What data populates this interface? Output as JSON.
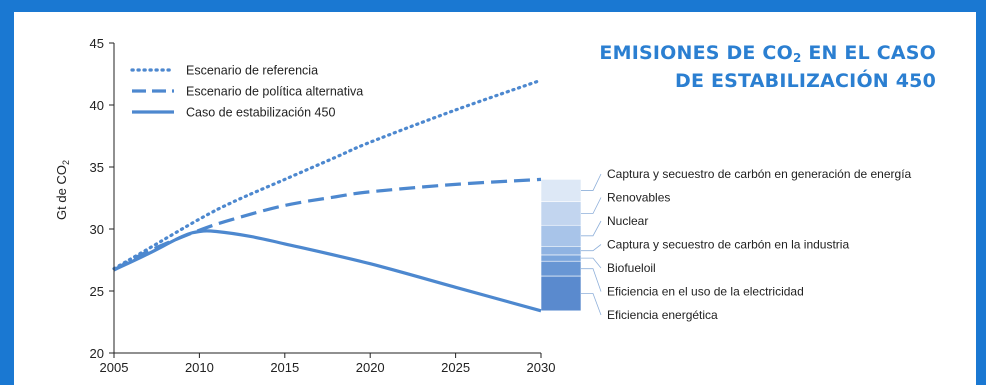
{
  "title": {
    "line1_pre": "EMISIONES DE CO",
    "line1_sub": "2",
    "line1_post": " EN EL CASO",
    "line2": "DE ESTABILIZACIÓN 450"
  },
  "chart_data": {
    "type": "line",
    "title": "EMISIONES DE CO2 EN EL CASO DE ESTABILIZACIÓN 450",
    "ylabel": "Gt de CO2",
    "ylabel_parts": {
      "main": "Gt de CO",
      "sub": "2"
    },
    "xlabel": "",
    "xlim": [
      2005,
      2030
    ],
    "ylim": [
      20,
      45
    ],
    "xticks": [
      "2005",
      "2010",
      "2015",
      "2020",
      "2025",
      "2030"
    ],
    "yticks": [
      "20",
      "25",
      "30",
      "35",
      "40",
      "45"
    ],
    "grid": false,
    "legend_position": "top-left",
    "series": [
      {
        "name": "Escenario de referencia",
        "style": "dotted",
        "points": [
          [
            2005,
            26.8
          ],
          [
            2007,
            28.4
          ],
          [
            2010,
            30.8
          ],
          [
            2012,
            32.2
          ],
          [
            2015,
            34.0
          ],
          [
            2018,
            35.8
          ],
          [
            2020,
            37.0
          ],
          [
            2025,
            39.6
          ],
          [
            2030,
            42.0
          ]
        ]
      },
      {
        "name": "Escenario de política alternativa",
        "style": "dashed",
        "points": [
          [
            2005,
            26.7
          ],
          [
            2007,
            28.2
          ],
          [
            2010,
            29.9
          ],
          [
            2012,
            30.8
          ],
          [
            2015,
            31.9
          ],
          [
            2018,
            32.6
          ],
          [
            2020,
            33.0
          ],
          [
            2025,
            33.6
          ],
          [
            2030,
            34.0
          ]
        ]
      },
      {
        "name": "Caso de estabilización 450",
        "style": "solid",
        "points": [
          [
            2005,
            26.7
          ],
          [
            2007,
            28.0
          ],
          [
            2009,
            29.4
          ],
          [
            2010,
            29.8
          ],
          [
            2011,
            29.8
          ],
          [
            2013,
            29.4
          ],
          [
            2015,
            28.8
          ],
          [
            2020,
            27.2
          ],
          [
            2025,
            25.3
          ],
          [
            2030,
            23.4
          ]
        ]
      }
    ],
    "wedges": [
      {
        "label": "Captura y secuestro de carbón en generación de energía",
        "from": 34.0,
        "to": 32.2,
        "color": "#dde8f6"
      },
      {
        "label": "Renovables",
        "from": 32.2,
        "to": 30.3,
        "color": "#c2d5ef"
      },
      {
        "label": "Nuclear",
        "from": 30.3,
        "to": 28.6,
        "color": "#a8c4e9"
      },
      {
        "label": "Captura y secuestro de carbón en la industria",
        "from": 28.6,
        "to": 27.9,
        "color": "#8fb3e2"
      },
      {
        "label": "Biofueloil",
        "from": 27.9,
        "to": 27.4,
        "color": "#7aa5dc"
      },
      {
        "label": "Eficiencia en el uso de la electricidad",
        "from": 27.4,
        "to": 26.2,
        "color": "#6896d4"
      },
      {
        "label": "Eficiencia energética",
        "from": 26.2,
        "to": 23.4,
        "color": "#5a8ace"
      }
    ],
    "colors": {
      "line": "#4d88cf",
      "axis": "#222222",
      "text": "#222222"
    }
  }
}
